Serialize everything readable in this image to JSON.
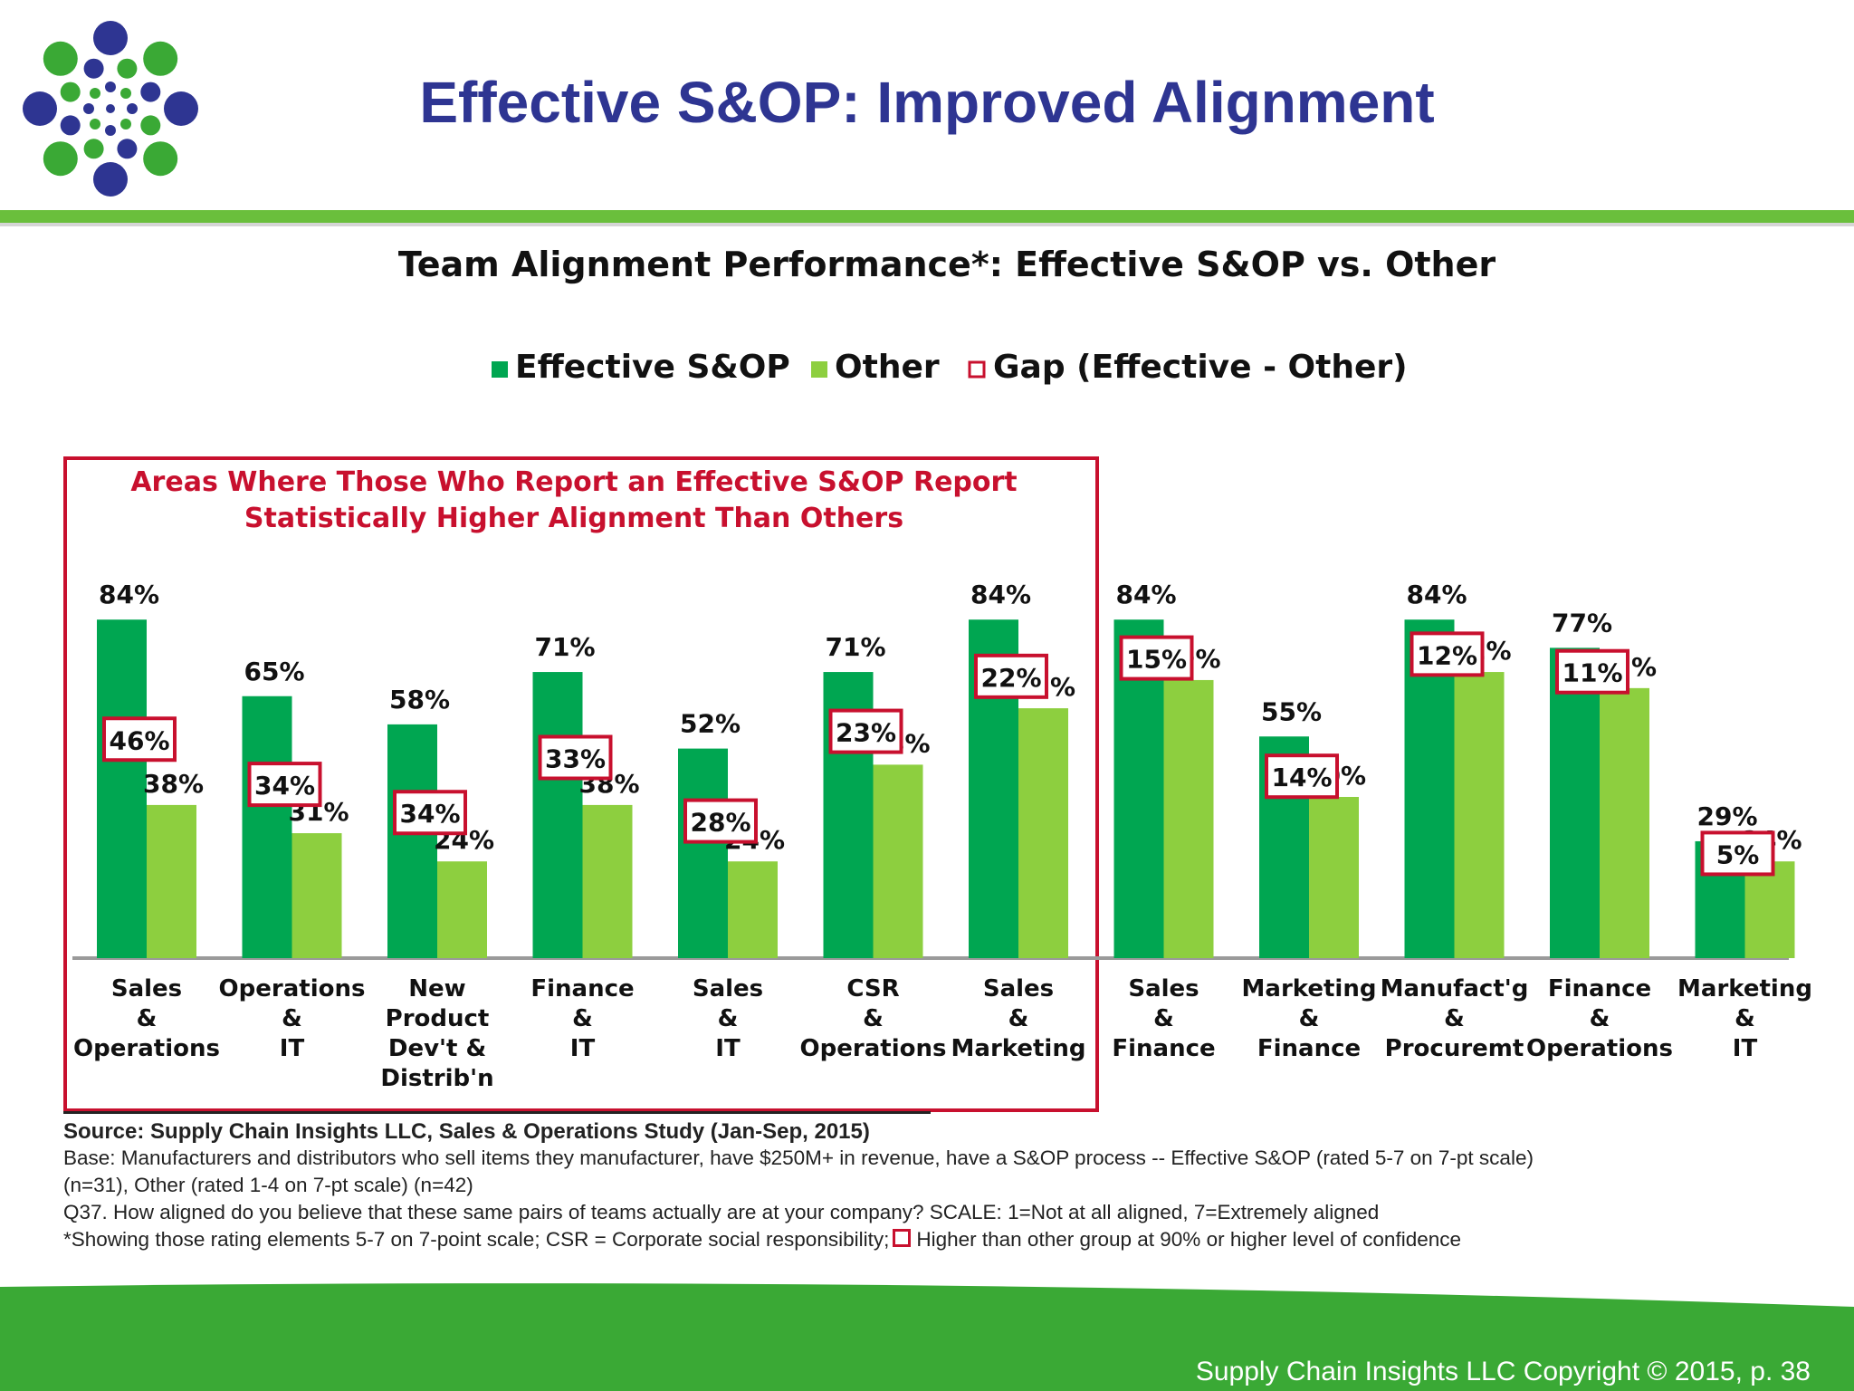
{
  "slide": {
    "title": "Effective S&OP: Improved Alignment",
    "copyright": "Supply Chain Insights LLC Copyright © 2015, p. 38"
  },
  "colors": {
    "title_blue": "#2e3592",
    "accent_green": "#6abf3c",
    "effective_green": "#00a651",
    "other_green": "#8dcf3f",
    "gap_red": "#c8102e",
    "footer_green": "#3aa935"
  },
  "icons": {
    "logo": "dot-burst-logo-icon"
  },
  "chart_data": {
    "type": "bar",
    "title": "Team Alignment Performance*: Effective S&OP vs. Other",
    "legend": [
      "Effective S&OP",
      "Other",
      "Gap (Effective - Other)"
    ],
    "legend_position": "top-center",
    "highlight_note": [
      "Areas Where Those Who Report an Effective S&OP Report",
      "Statistically Higher Alignment Than Others"
    ],
    "highlighted_count": 7,
    "categories": [
      [
        "Sales",
        "&",
        "Operations"
      ],
      [
        "Operations",
        "&",
        "IT"
      ],
      [
        "New",
        "Product",
        "Dev't &",
        "Distrib'n"
      ],
      [
        "Finance",
        "&",
        "IT"
      ],
      [
        "Sales",
        "&",
        "IT"
      ],
      [
        "CSR",
        "&",
        "Operations"
      ],
      [
        "Sales",
        "&",
        "Marketing"
      ],
      [
        "Sales",
        "&",
        "Finance"
      ],
      [
        "Marketing",
        "&",
        "Finance"
      ],
      [
        "Manufact'g",
        "&",
        "Procuremt"
      ],
      [
        "Finance",
        "&",
        "Operations"
      ],
      [
        "Marketing",
        "&",
        "IT"
      ]
    ],
    "series": [
      {
        "name": "Effective S&OP",
        "values": [
          84,
          65,
          58,
          71,
          52,
          71,
          84,
          84,
          55,
          84,
          77,
          29
        ]
      },
      {
        "name": "Other",
        "values": [
          38,
          31,
          24,
          38,
          24,
          48,
          62,
          69,
          40,
          71,
          67,
          24
        ]
      },
      {
        "name": "Gap (Effective - Other)",
        "values": [
          46,
          34,
          34,
          33,
          28,
          23,
          22,
          15,
          14,
          12,
          11,
          5
        ]
      }
    ],
    "unit": "%",
    "ylim": [
      0,
      100
    ],
    "grid": false
  },
  "notes": {
    "source": "Source:  Supply Chain Insights LLC, Sales & Operations Study (Jan-Sep, 2015)",
    "base_line1": "Base: Manufacturers and distributors who sell items they manufacturer, have $250M+ in revenue, have a S&OP process -- Effective S&OP (rated 5-7 on 7-pt scale)",
    "base_line2": "(n=31), Other (rated 1-4 on 7-pt scale) (n=42)",
    "question": "Q37. How aligned do you believe that these same pairs of teams actually are at your company?  SCALE: 1=Not at all aligned, 7=Extremely aligned",
    "footnote_a": "*Showing those rating elements 5-7 on 7-point scale; CSR = Corporate social responsibility;",
    "footnote_b": "Higher than other group at 90% or higher level of confidence"
  }
}
